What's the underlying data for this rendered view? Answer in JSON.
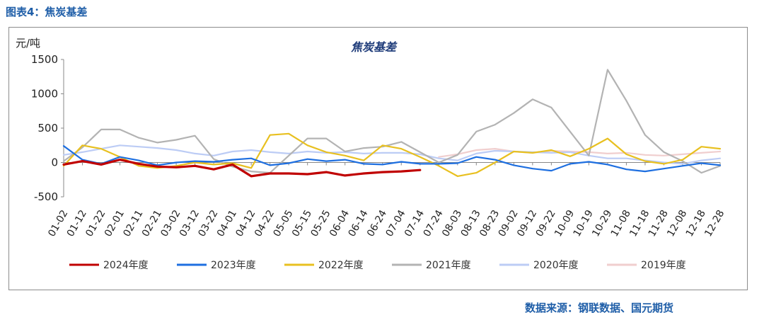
{
  "figure_label": "图表4：焦炭基差",
  "source": "数据来源：钢联数据、国元期货",
  "chart_data": {
    "type": "line",
    "title": "焦炭基差",
    "ylabel": "元/吨",
    "xlabel": "",
    "ylim": [
      -500,
      1500
    ],
    "yticks": [
      -500,
      0,
      500,
      1000,
      1500
    ],
    "grid": false,
    "legend_position": "bottom",
    "categories": [
      "01-02",
      "01-12",
      "01-22",
      "02-01",
      "02-11",
      "02-21",
      "03-02",
      "03-12",
      "03-22",
      "04-01",
      "04-12",
      "04-22",
      "05-05",
      "05-15",
      "05-25",
      "06-04",
      "06-14",
      "06-24",
      "07-04",
      "07-14",
      "07-24",
      "08-03",
      "08-13",
      "08-23",
      "09-02",
      "09-12",
      "09-22",
      "10-09",
      "10-19",
      "10-29",
      "11-08",
      "11-18",
      "11-28",
      "12-08",
      "12-18",
      "12-28"
    ],
    "series": [
      {
        "name": "2024年度",
        "color": "#c00000",
        "width": 3.2,
        "values": [
          -30,
          20,
          -30,
          40,
          -20,
          -60,
          -70,
          -50,
          -100,
          -30,
          -200,
          -160,
          -160,
          -170,
          -140,
          -190,
          -160,
          -140,
          -130,
          -110,
          null,
          null,
          null,
          null,
          null,
          null,
          null,
          null,
          null,
          null,
          null,
          null,
          null,
          null,
          null,
          null
        ]
      },
      {
        "name": "2023年度",
        "color": "#1e6fe0",
        "width": 2.2,
        "values": [
          240,
          40,
          -20,
          80,
          30,
          -40,
          0,
          20,
          10,
          40,
          60,
          -40,
          -10,
          50,
          20,
          40,
          -20,
          -30,
          10,
          -20,
          -20,
          -10,
          80,
          40,
          -40,
          -90,
          -120,
          -20,
          10,
          -30,
          -100,
          -130,
          -90,
          -50,
          -10,
          -40
        ]
      },
      {
        "name": "2022年度",
        "color": "#e8c020",
        "width": 2.2,
        "values": [
          -50,
          250,
          200,
          80,
          -50,
          -80,
          -50,
          0,
          -30,
          -10,
          -80,
          400,
          420,
          250,
          150,
          100,
          30,
          250,
          200,
          80,
          -50,
          -200,
          -150,
          0,
          160,
          140,
          180,
          90,
          200,
          350,
          120,
          20,
          -20,
          40,
          230,
          200
        ]
      },
      {
        "name": "2021年度",
        "color": "#b3b3b3",
        "width": 2.2,
        "values": [
          20,
          220,
          480,
          480,
          360,
          290,
          330,
          390,
          50,
          -60,
          -130,
          -150,
          100,
          350,
          350,
          160,
          210,
          230,
          300,
          150,
          0,
          110,
          450,
          550,
          720,
          920,
          800,
          450,
          100,
          1350,
          900,
          400,
          150,
          20,
          -150,
          -50
        ]
      },
      {
        "name": "2020年度",
        "color": "#bcccf5",
        "width": 2.2,
        "values": [
          110,
          150,
          200,
          250,
          230,
          210,
          180,
          130,
          100,
          160,
          180,
          150,
          130,
          160,
          140,
          150,
          130,
          140,
          140,
          120,
          60,
          30,
          130,
          170,
          160,
          150,
          140,
          150,
          100,
          60,
          60,
          30,
          0,
          -20,
          30,
          60
        ]
      },
      {
        "name": "2019年度",
        "color": "#f0cece",
        "width": 2.2,
        "values": [
          null,
          null,
          null,
          null,
          null,
          null,
          null,
          null,
          null,
          null,
          null,
          null,
          null,
          null,
          null,
          null,
          null,
          null,
          null,
          null,
          80,
          120,
          180,
          200,
          160,
          140,
          170,
          160,
          150,
          130,
          140,
          110,
          100,
          120,
          140,
          160
        ]
      }
    ]
  }
}
